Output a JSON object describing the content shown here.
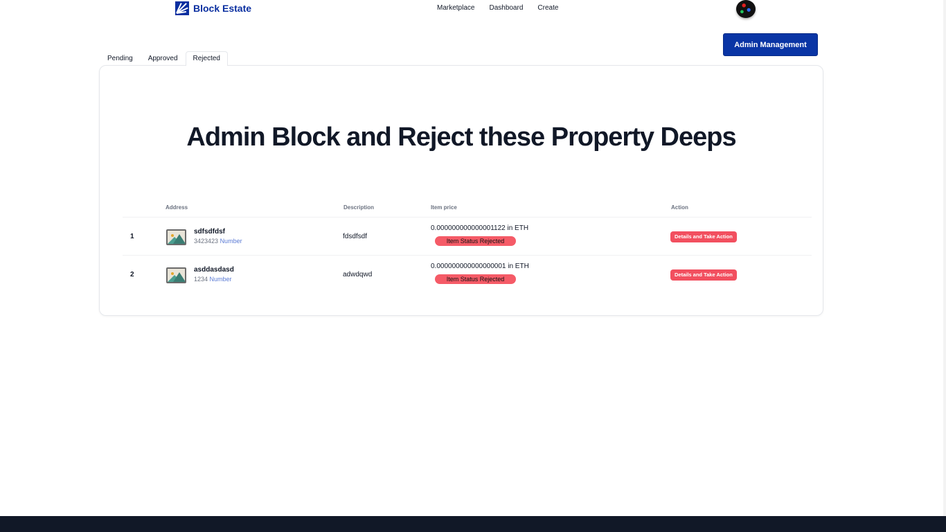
{
  "brand": {
    "name": "Block Estate",
    "color": "#0a2fa0"
  },
  "nav": {
    "links": [
      "Marketplace",
      "Dashboard",
      "Create"
    ]
  },
  "admin_button": "Admin Management",
  "tabs": [
    {
      "label": "Pending"
    },
    {
      "label": "Approved"
    },
    {
      "label": "Rejected",
      "active": true
    }
  ],
  "title": "Admin Block and Reject these Property Deeps",
  "table": {
    "headers": [
      "Address",
      "Description",
      "Item price",
      "Action"
    ],
    "rows": [
      {
        "index": "1",
        "name": "sdfsdfdsf",
        "number": "3423423",
        "number_label": "Number",
        "description": "fdsdfsdf",
        "price": "0.000000000000001122 in ETH",
        "status": "Item Status Rejected",
        "action": "Details and Take Action"
      },
      {
        "index": "2",
        "name": "asddasdasd",
        "number": "1234",
        "number_label": "Number",
        "description": "adwdqwd",
        "price": "0.000000000000000001 in ETH",
        "status": "Item Status Rejected",
        "action": "Details and Take Action"
      }
    ]
  },
  "colors": {
    "status": "#f55b67",
    "primary": "#0a35a5",
    "footer": "#111827"
  }
}
